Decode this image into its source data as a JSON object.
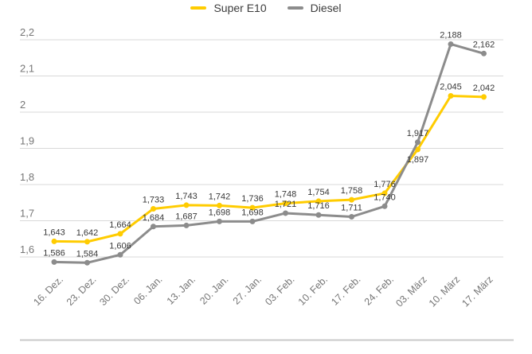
{
  "legend": {
    "items": [
      {
        "label": "Super E10",
        "color": "#FFCC00"
      },
      {
        "label": "Diesel",
        "color": "#8C8C8C"
      }
    ]
  },
  "colors": {
    "background": "#FFFFFF",
    "grid": "#D9D9D9",
    "axis_text": "#767676",
    "data_label_text": "#383838",
    "divider": "#C9C9C9",
    "super_e10": "#FFCC00",
    "diesel": "#8C8C8C"
  },
  "chart_data": {
    "type": "line",
    "title": "",
    "xlabel": "",
    "ylabel": "",
    "grid": true,
    "legend_position": "top-center",
    "ylim": [
      1.6,
      2.2
    ],
    "categories": [
      "16. Dez.",
      "23. Dez.",
      "30. Dez.",
      "06. Jan.",
      "13. Jan.",
      "20. Jan.",
      "27. Jan.",
      "03. Feb.",
      "10. Feb.",
      "17. Feb.",
      "24. Feb.",
      "03. März",
      "10. März",
      "17. März"
    ],
    "yticks": [
      {
        "value": 2.2,
        "label": "2,2"
      },
      {
        "value": 2.1,
        "label": "2,1"
      },
      {
        "value": 2.0,
        "label": "2"
      },
      {
        "value": 1.9,
        "label": "1,9"
      },
      {
        "value": 1.8,
        "label": "1,8"
      },
      {
        "value": 1.7,
        "label": "1,7"
      },
      {
        "value": 1.6,
        "label": "1,6"
      }
    ],
    "series": [
      {
        "name": "Super E10",
        "color": "#FFCC00",
        "values": [
          1.643,
          1.642,
          1.664,
          1.733,
          1.743,
          1.742,
          1.736,
          1.748,
          1.754,
          1.758,
          1.776,
          1.897,
          2.045,
          2.042
        ],
        "labels": [
          "1,643",
          "1,642",
          "1,664",
          "1,733",
          "1,743",
          "1,742",
          "1,736",
          "1,748",
          "1,754",
          "1,758",
          "1,776",
          "1,897",
          "2,045",
          "2,042"
        ],
        "label_below": [
          11
        ]
      },
      {
        "name": "Diesel",
        "color": "#8C8C8C",
        "values": [
          1.586,
          1.584,
          1.606,
          1.684,
          1.687,
          1.698,
          1.698,
          1.721,
          1.716,
          1.711,
          1.74,
          1.917,
          2.188,
          2.162
        ],
        "labels": [
          "1,586",
          "1,584",
          "1,606",
          "1,684",
          "1,687",
          "1,698",
          "1,698",
          "1,721",
          "1,716",
          "1,711",
          "1,740",
          "1,917",
          "2,188",
          "2,162"
        ],
        "label_below": []
      }
    ]
  }
}
